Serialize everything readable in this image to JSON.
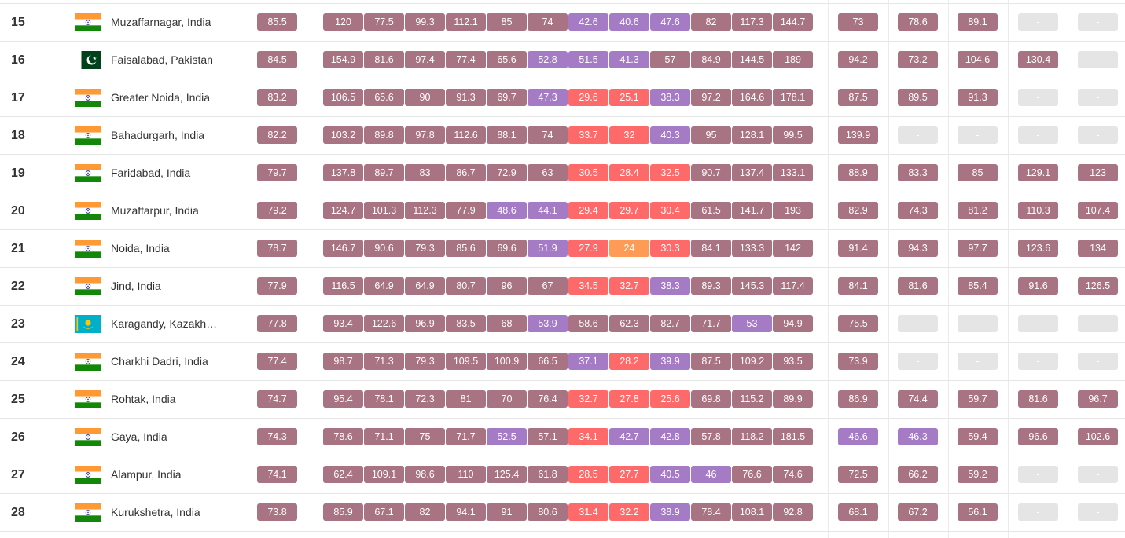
{
  "table": {
    "colors": {
      "very_unhealthy": "#a87383",
      "unhealthy": "#a57bc6",
      "unhealthy_sensitive": "#fe6a69",
      "moderate": "#fe9b57",
      "no_data": "#e5e5e5"
    },
    "rows": [
      {
        "rank": "15",
        "city": "Muzaffarnagar, India",
        "flag": "india",
        "avg": "85.5",
        "months": [
          "120",
          "77.5",
          "99.3",
          "112.1",
          "85",
          "74",
          "42.6",
          "40.6",
          "47.6",
          "82",
          "117.3",
          "144.7"
        ],
        "years": [
          "73",
          "78.6",
          "89.1",
          "-",
          "-"
        ]
      },
      {
        "rank": "16",
        "city": "Faisalabad, Pakistan",
        "flag": "pakistan",
        "avg": "84.5",
        "months": [
          "154.9",
          "81.6",
          "97.4",
          "77.4",
          "65.6",
          "52.8",
          "51.5",
          "41.3",
          "57",
          "84.9",
          "144.5",
          "189"
        ],
        "years": [
          "94.2",
          "73.2",
          "104.6",
          "130.4",
          "-"
        ]
      },
      {
        "rank": "17",
        "city": "Greater Noida, India",
        "flag": "india",
        "avg": "83.2",
        "months": [
          "106.5",
          "65.6",
          "90",
          "91.3",
          "69.7",
          "47.3",
          "29.6",
          "25.1",
          "38.3",
          "97.2",
          "164.6",
          "178.1"
        ],
        "years": [
          "87.5",
          "89.5",
          "91.3",
          "-",
          "-"
        ]
      },
      {
        "rank": "18",
        "city": "Bahadurgarh, India",
        "flag": "india",
        "avg": "82.2",
        "months": [
          "103.2",
          "89.8",
          "97.8",
          "112.6",
          "88.1",
          "74",
          "33.7",
          "32",
          "40.3",
          "95",
          "128.1",
          "99.5"
        ],
        "years": [
          "139.9",
          "-",
          "-",
          "-",
          "-"
        ]
      },
      {
        "rank": "19",
        "city": "Faridabad, India",
        "flag": "india",
        "avg": "79.7",
        "months": [
          "137.8",
          "89.7",
          "83",
          "86.7",
          "72.9",
          "63",
          "30.5",
          "28.4",
          "32.5",
          "90.7",
          "137.4",
          "133.1"
        ],
        "years": [
          "88.9",
          "83.3",
          "85",
          "129.1",
          "123"
        ]
      },
      {
        "rank": "20",
        "city": "Muzaffarpur, India",
        "flag": "india",
        "avg": "79.2",
        "months": [
          "124.7",
          "101.3",
          "112.3",
          "77.9",
          "48.6",
          "44.1",
          "29.4",
          "29.7",
          "30.4",
          "61.5",
          "141.7",
          "193"
        ],
        "years": [
          "82.9",
          "74.3",
          "81.2",
          "110.3",
          "107.4"
        ]
      },
      {
        "rank": "21",
        "city": "Noida, India",
        "flag": "india",
        "avg": "78.7",
        "months": [
          "146.7",
          "90.6",
          "79.3",
          "85.6",
          "69.6",
          "51.9",
          "27.9",
          "24",
          "30.3",
          "84.1",
          "133.3",
          "142"
        ],
        "years": [
          "91.4",
          "94.3",
          "97.7",
          "123.6",
          "134"
        ]
      },
      {
        "rank": "22",
        "city": "Jind, India",
        "flag": "india",
        "avg": "77.9",
        "months": [
          "116.5",
          "64.9",
          "64.9",
          "80.7",
          "96",
          "67",
          "34.5",
          "32.7",
          "38.3",
          "89.3",
          "145.3",
          "117.4"
        ],
        "years": [
          "84.1",
          "81.6",
          "85.4",
          "91.6",
          "126.5"
        ]
      },
      {
        "rank": "23",
        "city": "Karagandy, Kazakh…",
        "flag": "kazakhstan",
        "avg": "77.8",
        "months": [
          "93.4",
          "122.6",
          "96.9",
          "83.5",
          "68",
          "53.9",
          "58.6",
          "62.3",
          "82.7",
          "71.7",
          "53",
          "94.9"
        ],
        "years": [
          "75.5",
          "-",
          "-",
          "-",
          "-"
        ]
      },
      {
        "rank": "24",
        "city": "Charkhi Dadri, India",
        "flag": "india",
        "avg": "77.4",
        "months": [
          "98.7",
          "71.3",
          "79.3",
          "109.5",
          "100.9",
          "66.5",
          "37.1",
          "28.2",
          "39.9",
          "87.5",
          "109.2",
          "93.5"
        ],
        "years": [
          "73.9",
          "-",
          "-",
          "-",
          "-"
        ]
      },
      {
        "rank": "25",
        "city": "Rohtak, India",
        "flag": "india",
        "avg": "74.7",
        "months": [
          "95.4",
          "78.1",
          "72.3",
          "81",
          "70",
          "76.4",
          "32.7",
          "27.8",
          "25.6",
          "69.8",
          "115.2",
          "89.9"
        ],
        "years": [
          "86.9",
          "74.4",
          "59.7",
          "81.6",
          "96.7"
        ]
      },
      {
        "rank": "26",
        "city": "Gaya, India",
        "flag": "india",
        "avg": "74.3",
        "months": [
          "78.6",
          "71.1",
          "75",
          "71.7",
          "52.5",
          "57.1",
          "34.1",
          "42.7",
          "42.8",
          "57.8",
          "118.2",
          "181.5"
        ],
        "years": [
          "46.6",
          "46.3",
          "59.4",
          "96.6",
          "102.6"
        ]
      },
      {
        "rank": "27",
        "city": "Alampur, India",
        "flag": "india",
        "avg": "74.1",
        "months": [
          "62.4",
          "109.1",
          "98.6",
          "110",
          "125.4",
          "61.8",
          "28.5",
          "27.7",
          "40.5",
          "46",
          "76.6",
          "74.6"
        ],
        "years": [
          "72.5",
          "66.2",
          "59.2",
          "-",
          "-"
        ]
      },
      {
        "rank": "28",
        "city": "Kurukshetra, India",
        "flag": "india",
        "avg": "73.8",
        "months": [
          "85.9",
          "67.1",
          "82",
          "94.1",
          "91",
          "80.6",
          "31.4",
          "32.2",
          "38.9",
          "78.4",
          "108.1",
          "92.8"
        ],
        "years": [
          "68.1",
          "67.2",
          "56.1",
          "-",
          "-"
        ]
      }
    ]
  }
}
